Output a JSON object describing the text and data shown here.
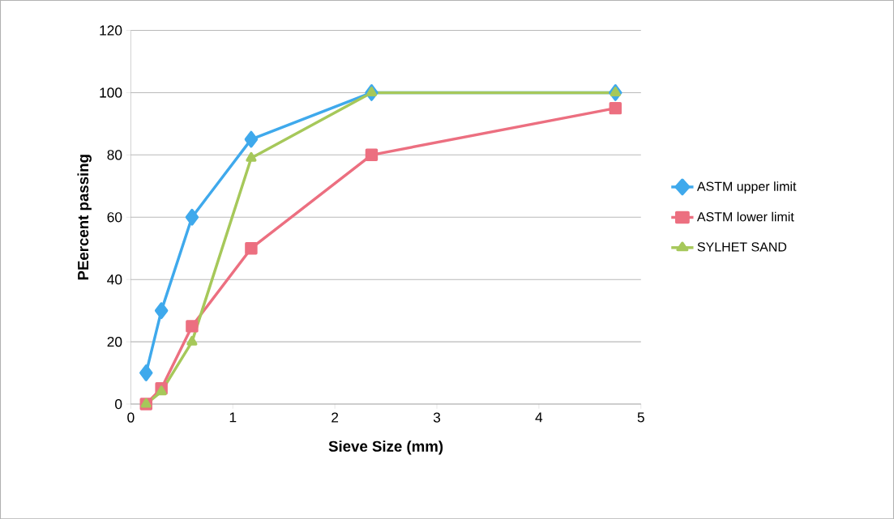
{
  "chart_data": {
    "type": "line",
    "xlabel": "Sieve Size (mm)",
    "ylabel": "PEercent passing",
    "x": [
      0.15,
      0.3,
      0.6,
      1.18,
      2.36,
      4.75
    ],
    "series": [
      {
        "name": "ASTM upper limit",
        "color": "#3fa9ec",
        "marker": "diamond",
        "values": [
          10,
          30,
          60,
          85,
          100,
          100
        ]
      },
      {
        "name": "ASTM lower limit",
        "color": "#ec6f80",
        "marker": "square",
        "values": [
          0,
          5,
          25,
          50,
          80,
          95
        ]
      },
      {
        "name": "SYLHET SAND",
        "color": "#a6c85a",
        "marker": "triangle",
        "values": [
          0,
          4,
          20,
          79,
          100,
          100
        ]
      }
    ],
    "xlim": [
      0,
      5
    ],
    "xticks": [
      0,
      1,
      2,
      3,
      4,
      5
    ],
    "ylim": [
      0,
      120
    ],
    "yticks": [
      0,
      20,
      40,
      60,
      80,
      100,
      120
    ],
    "grid": "y",
    "legend": "right"
  }
}
